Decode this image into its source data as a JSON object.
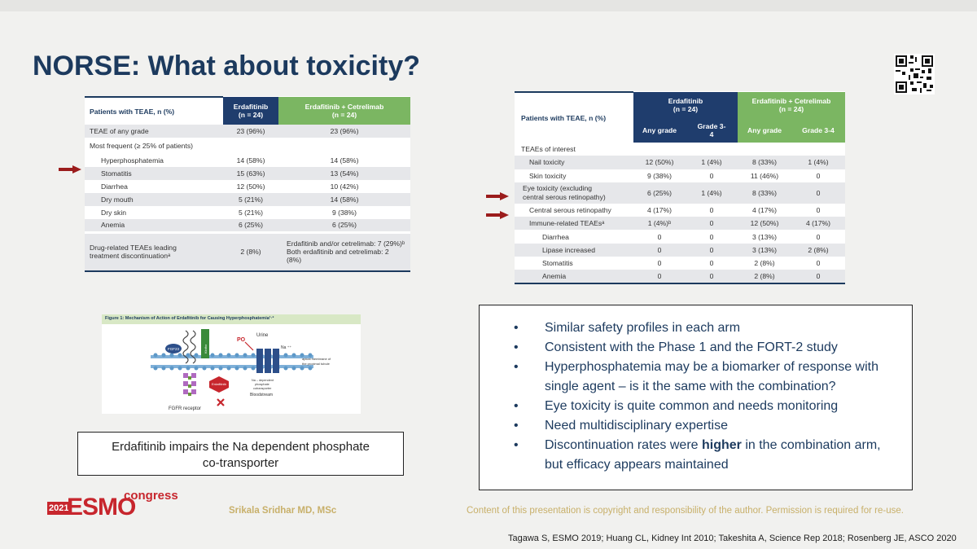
{
  "slide": {
    "title": "NORSE: What about toxicity?"
  },
  "table1": {
    "header_label": "Patients with TEAE, n (%)",
    "col1": "Erdafitinib",
    "col1_n": "(n = 24)",
    "col2": "Erdafitinib + Cetrelimab",
    "col2_n": "(n = 24)",
    "row_any": {
      "label": "TEAE of any grade",
      "v1": "23 (96%)",
      "v2": "23 (96%)"
    },
    "section_label": "Most frequent (≥ 25% of patients)",
    "rows": [
      {
        "label": "Hyperphosphatemia",
        "v1": "14 (58%)",
        "v2": "14 (58%)"
      },
      {
        "label": "Stomatitis",
        "v1": "15 (63%)",
        "v2": "13 (54%)"
      },
      {
        "label": "Diarrhea",
        "v1": "12 (50%)",
        "v2": "10 (42%)"
      },
      {
        "label": "Dry mouth",
        "v1": "5 (21%)",
        "v2": "14 (58%)"
      },
      {
        "label": "Dry skin",
        "v1": "5 (21%)",
        "v2": "9 (38%)"
      },
      {
        "label": "Anemia",
        "v1": "6 (25%)",
        "v2": "6 (25%)"
      }
    ],
    "disc": {
      "label_line1": "Drug-related TEAEs leading",
      "label_line2": "treatment discontinuationᵃ",
      "v1": "2 (8%)",
      "v2_line1": "Erdafitinib and/or cetrelimab: 7 (29%)ᵇ",
      "v2_line2": "Both erdafitinib and cetrelimab: 2 (8%)"
    }
  },
  "table2": {
    "header_label": "Patients with TEAE, n (%)",
    "group1": "Erdafitinib",
    "group1_n": "(n = 24)",
    "group2": "Erdafitinib + Cetrelimab",
    "group2_n": "(n = 24)",
    "sub_any": "Any grade",
    "sub_g34_a": "Grade 3-",
    "sub_g34_b": "4",
    "sub_any2": "Any grade",
    "sub_g34_2": "Grade 3-4",
    "section_label": "TEAEs of interest",
    "rows": [
      {
        "label": "Nail toxicity",
        "a": "12 (50%)",
        "b": "1 (4%)",
        "c": "8 (33%)",
        "d": "1 (4%)"
      },
      {
        "label": "Skin toxicity",
        "a": "9 (38%)",
        "b": "0",
        "c": "11 (46%)",
        "d": "0"
      },
      {
        "label": "Eye toxicity (excluding",
        "label2": "central serous retinopathy)",
        "a": "6 (25%)",
        "b": "1 (4%)",
        "c": "8 (33%)",
        "d": "0"
      },
      {
        "label": "Central serous retinopathy",
        "a": "4 (17%)",
        "b": "0",
        "c": "4 (17%)",
        "d": "0"
      },
      {
        "label": "Immune-related TEAEsᵃ",
        "a": "1 (4%)ᵇ",
        "b": "0",
        "c": "12 (50%)",
        "d": "4 (17%)"
      },
      {
        "label": "Diarrhea",
        "a": "0",
        "b": "0",
        "c": "3 (13%)",
        "d": "0"
      },
      {
        "label": "Lipase increased",
        "a": "0",
        "b": "0",
        "c": "3 (13%)",
        "d": "2 (8%)"
      },
      {
        "label": "Stomatitis",
        "a": "0",
        "b": "0",
        "c": "2 (8%)",
        "d": "0"
      },
      {
        "label": "Anemia",
        "a": "0",
        "b": "0",
        "c": "2 (8%)",
        "d": "0"
      }
    ]
  },
  "figure": {
    "caption": "Figure 1: Mechanism of Action of Erdafitinib for Causing Hyperphosphatemia¹·²",
    "urine": "Urine",
    "po": "PO",
    "na": "Na ⁺⁺",
    "membrane": "apical membrane of",
    "membrane2": "the proximal tubule",
    "fgf23": "FGF23",
    "klotho": "Klotho",
    "erdafitinib": "Erdafitinib",
    "cotransporter1": "Na – dependent",
    "cotransporter2": "phosphate",
    "cotransporter3": "cotransporter",
    "receptor": "FGFR receptor",
    "bloodstream": "Bloodstream"
  },
  "caption_box": {
    "line1": "Erdafitinib impairs the Na dependent phosphate",
    "line2": "co-transporter"
  },
  "bullets": {
    "b1": "Similar safety profiles in each arm",
    "b2": "Consistent with the Phase 1 and the FORT-2 study",
    "b3a": "Hyperphosphatemia may be a biomarker of response with",
    "b3b": "single agent – is it the same with the combination?",
    "b4": "Eye toxicity is quite common and needs monitoring",
    "b5": "Need multidisciplinary expertise",
    "b6a": "Discontinuation rates were ",
    "b6bold": "higher",
    "b6c": " in the combination arm,",
    "b6d": "but efficacy appears maintained"
  },
  "footer": {
    "esmo_year": "2021",
    "esmo_logo": "ESMO",
    "esmo_congress": "congress",
    "author": "Srikala Sridhar MD, MSc",
    "copyright": "Content of this presentation is copyright and responsibility of the author. Permission is required for re-use.",
    "references": "Tagawa S, ESMO 2019; Huang CL, Kidney Int 2010; Takeshita A, Science Rep  2018;  Rosenberg JE, ASCO 2020"
  },
  "colors": {
    "navy": "#1f3d6d",
    "green": "#7bb662",
    "arrow_red": "#9b1c1c",
    "title": "#1c3a5e"
  },
  "icons": [
    "qr-code-icon",
    "red-arrow-icon"
  ]
}
